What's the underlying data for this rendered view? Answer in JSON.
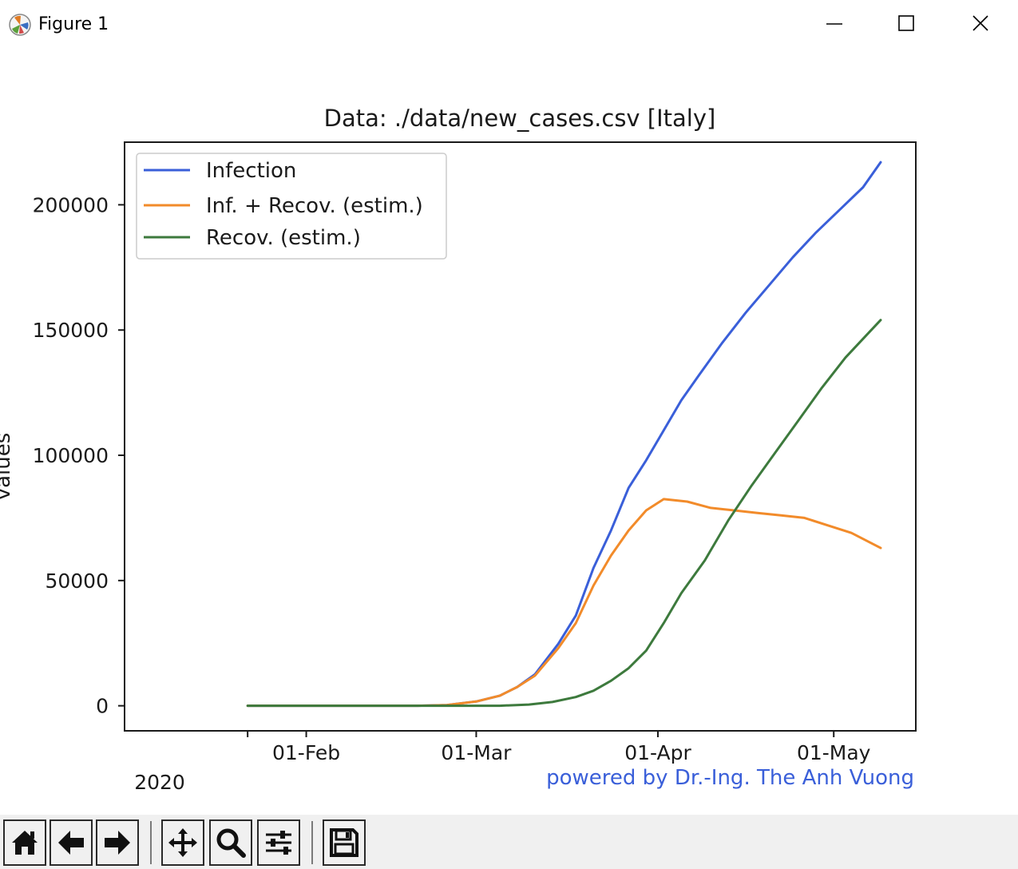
{
  "window": {
    "title": "Figure 1",
    "icon": "matplotlib-icon",
    "controls": [
      "minimize-icon",
      "maximize-icon",
      "close-icon"
    ]
  },
  "chart_data": {
    "type": "line",
    "title": "Data: ./data/new_cases.csv [Italy]",
    "xlabel": "",
    "ylabel": "values",
    "x_type": "date",
    "xlim": [
      "2020-01-01",
      "2020-05-15"
    ],
    "ylim": [
      -10000,
      225000
    ],
    "xticks": [
      "2020-01-22",
      "2020-02-01",
      "2020-03-01",
      "2020-04-01",
      "2020-05-01"
    ],
    "xtick_labels": [
      "",
      "01-Feb",
      "01-Mar",
      "01-Apr",
      "01-May"
    ],
    "x_offset_label": "2020",
    "yticks": [
      0,
      50000,
      100000,
      150000,
      200000
    ],
    "ytick_labels": [
      "0",
      "50000",
      "100000",
      "150000",
      "200000"
    ],
    "grid": false,
    "legend_position": "top-left",
    "series": [
      {
        "name": "Infection",
        "color": "#3a5fd9",
        "x": [
          "2020-01-22",
          "2020-02-20",
          "2020-02-25",
          "2020-03-01",
          "2020-03-05",
          "2020-03-08",
          "2020-03-11",
          "2020-03-15",
          "2020-03-18",
          "2020-03-21",
          "2020-03-24",
          "2020-03-27",
          "2020-03-30",
          "2020-04-02",
          "2020-04-05",
          "2020-04-08",
          "2020-04-12",
          "2020-04-16",
          "2020-04-20",
          "2020-04-24",
          "2020-04-28",
          "2020-05-02",
          "2020-05-06",
          "2020-05-09"
        ],
        "y": [
          0,
          0,
          300,
          1700,
          4000,
          7500,
          12500,
          24700,
          36000,
          55000,
          70000,
          87000,
          98000,
          110000,
          122000,
          132000,
          145000,
          157000,
          168000,
          179000,
          189000,
          198000,
          207000,
          217000
        ]
      },
      {
        "name": "Inf. + Recov. (estim.)",
        "color": "#f28b2a",
        "x": [
          "2020-01-22",
          "2020-02-20",
          "2020-02-25",
          "2020-03-01",
          "2020-03-05",
          "2020-03-08",
          "2020-03-11",
          "2020-03-15",
          "2020-03-18",
          "2020-03-21",
          "2020-03-24",
          "2020-03-27",
          "2020-03-30",
          "2020-04-02",
          "2020-04-06",
          "2020-04-10",
          "2020-04-14",
          "2020-04-18",
          "2020-04-22",
          "2020-04-26",
          "2020-04-30",
          "2020-05-04",
          "2020-05-09"
        ],
        "y": [
          0,
          0,
          300,
          1700,
          4000,
          7500,
          12000,
          23000,
          33000,
          48000,
          60000,
          70000,
          78000,
          82500,
          81500,
          79000,
          78000,
          77000,
          76000,
          75000,
          72000,
          69000,
          63000
        ]
      },
      {
        "name": "Recov. (estim.)",
        "color": "#3d7a3d",
        "x": [
          "2020-01-22",
          "2020-03-05",
          "2020-03-10",
          "2020-03-14",
          "2020-03-18",
          "2020-03-21",
          "2020-03-24",
          "2020-03-27",
          "2020-03-30",
          "2020-04-02",
          "2020-04-05",
          "2020-04-09",
          "2020-04-13",
          "2020-04-17",
          "2020-04-21",
          "2020-04-25",
          "2020-04-29",
          "2020-05-03",
          "2020-05-07",
          "2020-05-09"
        ],
        "y": [
          0,
          0,
          500,
          1500,
          3500,
          6000,
          10000,
          15000,
          22000,
          33000,
          45000,
          58000,
          74000,
          88000,
          101000,
          114000,
          127000,
          139000,
          149000,
          154000
        ]
      }
    ],
    "annotation": {
      "text": "powered by Dr.-Ing. The Anh Vuong",
      "color": "#3a5fd9",
      "position": "bottom-right"
    }
  },
  "toolbar": {
    "buttons": [
      {
        "name": "home-button",
        "icon": "home-icon"
      },
      {
        "name": "back-button",
        "icon": "arrow-left-icon"
      },
      {
        "name": "forward-button",
        "icon": "arrow-right-icon"
      },
      {
        "name": "pan-button",
        "icon": "move-icon"
      },
      {
        "name": "zoom-button",
        "icon": "magnifier-icon"
      },
      {
        "name": "subplots-button",
        "icon": "sliders-icon"
      },
      {
        "name": "save-button",
        "icon": "floppy-disk-icon"
      }
    ]
  }
}
